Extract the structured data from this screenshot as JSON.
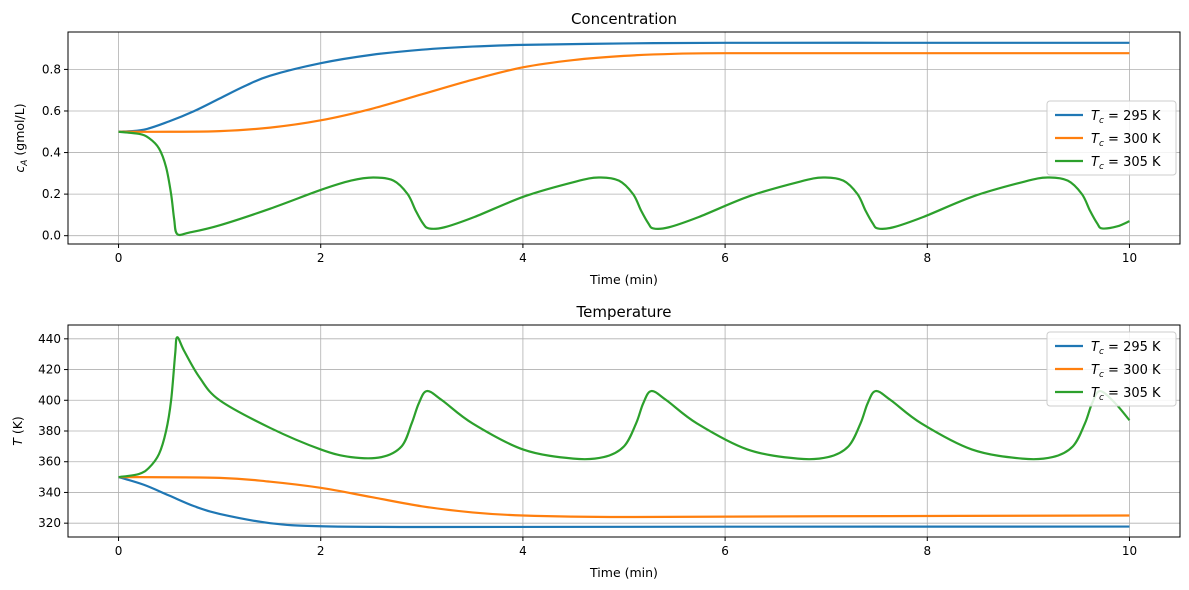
{
  "colors": {
    "295": "#1f77b4",
    "300": "#ff7f0e",
    "305": "#2ca02c",
    "grid": "#b0b0b0"
  },
  "chart_data": [
    {
      "type": "line",
      "title": "Concentration",
      "xlabel": "Time (min)",
      "ylabel_var": "c",
      "ylabel_sub": "A",
      "ylabel_unit": " (gmol/L)",
      "xlim": [
        -0.5,
        10.5
      ],
      "ylim": [
        -0.04,
        0.98
      ],
      "grid": true,
      "legend": "center-right",
      "xticks": [
        0,
        2,
        4,
        6,
        8,
        10
      ],
      "xtick_labels": [
        "0",
        "2",
        "4",
        "6",
        "8",
        "10"
      ],
      "yticks": [
        0,
        0.2,
        0.4,
        0.6,
        0.8
      ],
      "ytick_labels": [
        "0.0",
        "0.2",
        "0.4",
        "0.6",
        "0.8"
      ],
      "series": [
        {
          "name": "T_c = 295 K",
          "legend_rest": " = 295 K",
          "key": "295",
          "points": [
            [
              0,
              0.5
            ],
            [
              0.25,
              0.51
            ],
            [
              0.5,
              0.55
            ],
            [
              0.75,
              0.6
            ],
            [
              1,
              0.66
            ],
            [
              1.25,
              0.72
            ],
            [
              1.5,
              0.77
            ],
            [
              2,
              0.83
            ],
            [
              2.5,
              0.87
            ],
            [
              3,
              0.895
            ],
            [
              3.5,
              0.91
            ],
            [
              4,
              0.918
            ],
            [
              5,
              0.925
            ],
            [
              6,
              0.928
            ],
            [
              8,
              0.928
            ],
            [
              10,
              0.928
            ]
          ]
        },
        {
          "name": "T_c = 300 K",
          "legend_rest": " = 300 K",
          "key": "300",
          "points": [
            [
              0,
              0.5
            ],
            [
              0.5,
              0.5
            ],
            [
              1,
              0.503
            ],
            [
              1.5,
              0.52
            ],
            [
              2,
              0.555
            ],
            [
              2.5,
              0.61
            ],
            [
              3,
              0.68
            ],
            [
              3.5,
              0.75
            ],
            [
              4,
              0.81
            ],
            [
              4.5,
              0.845
            ],
            [
              5,
              0.865
            ],
            [
              5.5,
              0.875
            ],
            [
              6,
              0.878
            ],
            [
              8,
              0.878
            ],
            [
              10,
              0.878
            ]
          ]
        },
        {
          "name": "T_c = 305 K",
          "legend_rest": " = 305 K",
          "key": "305",
          "points": [
            [
              0,
              0.5
            ],
            [
              0.2,
              0.49
            ],
            [
              0.3,
              0.47
            ],
            [
              0.4,
              0.42
            ],
            [
              0.47,
              0.33
            ],
            [
              0.52,
              0.2
            ],
            [
              0.55,
              0.08
            ],
            [
              0.58,
              0.008
            ],
            [
              0.7,
              0.015
            ],
            [
              1,
              0.05
            ],
            [
              1.5,
              0.13
            ],
            [
              2,
              0.22
            ],
            [
              2.3,
              0.265
            ],
            [
              2.52,
              0.28
            ],
            [
              2.72,
              0.265
            ],
            [
              2.86,
              0.2
            ],
            [
              2.94,
              0.12
            ],
            [
              3.01,
              0.06
            ],
            [
              3.07,
              0.035
            ],
            [
              3.22,
              0.04
            ],
            [
              3.52,
              0.09
            ],
            [
              4.02,
              0.19
            ],
            [
              4.52,
              0.26
            ],
            [
              4.75,
              0.28
            ],
            [
              4.95,
              0.265
            ],
            [
              5.09,
              0.2
            ],
            [
              5.17,
              0.12
            ],
            [
              5.24,
              0.06
            ],
            [
              5.29,
              0.035
            ],
            [
              5.44,
              0.04
            ],
            [
              5.74,
              0.09
            ],
            [
              6.24,
              0.19
            ],
            [
              6.74,
              0.26
            ],
            [
              6.97,
              0.28
            ],
            [
              7.17,
              0.265
            ],
            [
              7.31,
              0.2
            ],
            [
              7.39,
              0.12
            ],
            [
              7.46,
              0.06
            ],
            [
              7.51,
              0.035
            ],
            [
              7.66,
              0.04
            ],
            [
              7.96,
              0.09
            ],
            [
              8.46,
              0.19
            ],
            [
              8.96,
              0.26
            ],
            [
              9.19,
              0.28
            ],
            [
              9.39,
              0.265
            ],
            [
              9.53,
              0.2
            ],
            [
              9.61,
              0.12
            ],
            [
              9.68,
              0.06
            ],
            [
              9.73,
              0.035
            ],
            [
              9.88,
              0.045
            ],
            [
              10,
              0.07
            ]
          ]
        }
      ]
    },
    {
      "type": "line",
      "title": "Temperature",
      "xlabel": "Time (min)",
      "ylabel_var": "T",
      "ylabel_sub": "",
      "ylabel_unit": " (K)",
      "xlim": [
        -0.5,
        10.5
      ],
      "ylim": [
        311,
        449
      ],
      "grid": true,
      "legend": "upper-right",
      "xticks": [
        0,
        2,
        4,
        6,
        8,
        10
      ],
      "xtick_labels": [
        "0",
        "2",
        "4",
        "6",
        "8",
        "10"
      ],
      "yticks": [
        320,
        340,
        360,
        380,
        400,
        420,
        440
      ],
      "ytick_labels": [
        "320",
        "340",
        "360",
        "380",
        "400",
        "420",
        "440"
      ],
      "series": [
        {
          "name": "T_c = 295 K",
          "legend_rest": " = 295 K",
          "key": "295",
          "points": [
            [
              0,
              350
            ],
            [
              0.25,
              345
            ],
            [
              0.5,
              338
            ],
            [
              0.75,
              331
            ],
            [
              1,
              326
            ],
            [
              1.5,
              320
            ],
            [
              2,
              318
            ],
            [
              3,
              317.5
            ],
            [
              6,
              317.7
            ],
            [
              10,
              317.8
            ]
          ]
        },
        {
          "name": "T_c = 300 K",
          "legend_rest": " = 300 K",
          "key": "300",
          "points": [
            [
              0,
              350
            ],
            [
              1,
              349.5
            ],
            [
              1.5,
              347
            ],
            [
              2,
              343
            ],
            [
              2.5,
              337
            ],
            [
              3,
              331
            ],
            [
              3.5,
              327
            ],
            [
              4,
              325
            ],
            [
              5,
              324
            ],
            [
              7,
              324.5
            ],
            [
              10,
              325
            ]
          ]
        },
        {
          "name": "T_c = 305 K",
          "legend_rest": " = 305 K",
          "key": "305",
          "points": [
            [
              0,
              350
            ],
            [
              0.2,
              352
            ],
            [
              0.3,
              356
            ],
            [
              0.4,
              365
            ],
            [
              0.47,
              380
            ],
            [
              0.52,
              400
            ],
            [
              0.56,
              430
            ],
            [
              0.58,
              441
            ],
            [
              0.65,
              432
            ],
            [
              0.8,
              415
            ],
            [
              1,
              400
            ],
            [
              1.5,
              382
            ],
            [
              2,
              368
            ],
            [
              2.3,
              363
            ],
            [
              2.6,
              363
            ],
            [
              2.8,
              370
            ],
            [
              2.9,
              385
            ],
            [
              2.97,
              398
            ],
            [
              3.05,
              406
            ],
            [
              3.2,
              400
            ],
            [
              3.5,
              385
            ],
            [
              4,
              368
            ],
            [
              4.5,
              362
            ],
            [
              4.8,
              363
            ],
            [
              5,
              370
            ],
            [
              5.12,
              385
            ],
            [
              5.19,
              398
            ],
            [
              5.27,
              406
            ],
            [
              5.42,
              400
            ],
            [
              5.72,
              385
            ],
            [
              6.22,
              368
            ],
            [
              6.72,
              362
            ],
            [
              7.02,
              363
            ],
            [
              7.22,
              370
            ],
            [
              7.34,
              385
            ],
            [
              7.41,
              398
            ],
            [
              7.49,
              406
            ],
            [
              7.64,
              400
            ],
            [
              7.94,
              385
            ],
            [
              8.44,
              368
            ],
            [
              8.94,
              362
            ],
            [
              9.24,
              363
            ],
            [
              9.44,
              370
            ],
            [
              9.56,
              385
            ],
            [
              9.63,
              398
            ],
            [
              9.71,
              406
            ],
            [
              9.86,
              398
            ],
            [
              10,
              387
            ]
          ]
        }
      ]
    }
  ]
}
